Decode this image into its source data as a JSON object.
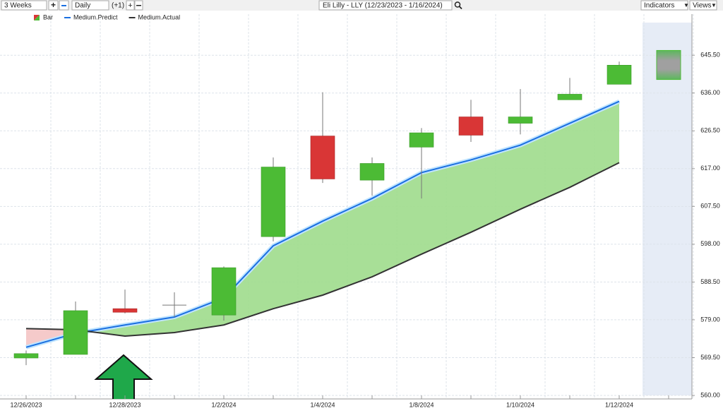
{
  "toolbar": {
    "range": "3 Weeks",
    "interval": "Daily",
    "offset": "(+1)",
    "title": "Eli Lilly - LLY (12/23/2023 - 1/16/2024)",
    "indicators": "Indicators",
    "views": "Views"
  },
  "chart_data": {
    "type": "candlestick",
    "categories": [
      "12/26/2023",
      null,
      "12/28/2023",
      null,
      "1/2/2024",
      null,
      "1/4/2024",
      null,
      "1/8/2024",
      null,
      "1/10/2024",
      null,
      "1/12/2024",
      null
    ],
    "series": [
      {
        "name": "Bar",
        "up_color": "#4cbb35",
        "down_color": "#d93636",
        "open": [
          569.4,
          570.3,
          581.8,
          582.7,
          580.2,
          599.9,
          625.2,
          614.1,
          622.4,
          630.0,
          628.4,
          634.3,
          638.2,
          null
        ],
        "high": [
          571.3,
          583.6,
          586.6,
          585.9,
          592.4,
          619.8,
          636.2,
          619.8,
          627.2,
          634.3,
          637.0,
          639.8,
          643.9,
          null
        ],
        "low": [
          567.6,
          570.3,
          580.6,
          579.7,
          578.8,
          598.7,
          613.4,
          610.2,
          609.5,
          623.7,
          625.6,
          634.3,
          638.2,
          null
        ],
        "close": [
          570.5,
          581.3,
          580.9,
          582.7,
          592.1,
          617.4,
          614.4,
          618.3,
          626.0,
          625.4,
          630.0,
          635.7,
          643.0,
          null
        ]
      },
      {
        "name": "Medium.Predict",
        "color": "#1a6fe0",
        "values": [
          572.1,
          575.6,
          577.7,
          579.7,
          584.5,
          597.6,
          603.8,
          609.5,
          616.0,
          619.2,
          622.9,
          628.4,
          633.9,
          null
        ]
      },
      {
        "name": "Medium.Actual",
        "color": "#333333",
        "values": [
          576.8,
          576.5,
          574.9,
          575.8,
          577.7,
          581.8,
          585.2,
          589.8,
          595.5,
          601.0,
          606.8,
          612.3,
          618.5,
          null
        ]
      }
    ],
    "forecast": {
      "low": 639.4,
      "high": 646.7
    },
    "fill_above_color": "#9edc8c",
    "fill_below_color": "#f4c4c4",
    "ylim": [
      560,
      653.7
    ],
    "yticks": [
      {
        "value": 560,
        "label": "560.00"
      },
      {
        "value": 569.5,
        "label": "569.50"
      },
      {
        "value": 579,
        "label": "579.00"
      },
      {
        "value": 588.5,
        "label": "588.50"
      },
      {
        "value": 598,
        "label": "598.00"
      },
      {
        "value": 607.5,
        "label": "607.50"
      },
      {
        "value": 617,
        "label": "617.00"
      },
      {
        "value": 626.5,
        "label": "626.50"
      },
      {
        "value": 636,
        "label": "636.00"
      },
      {
        "value": 645.5,
        "label": "645.50"
      }
    ],
    "grid": true
  }
}
